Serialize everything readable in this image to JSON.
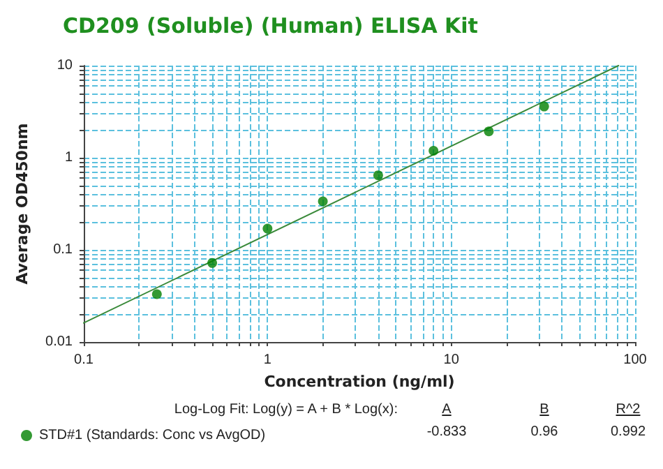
{
  "chart_data": {
    "type": "scatter",
    "title": "CD209 (Soluble) (Human) ELISA Kit",
    "xlabel": "Concentration (ng/ml)",
    "ylabel": "Average OD450nm",
    "log": "xy",
    "xlim": [
      0.1,
      100
    ],
    "ylim": [
      0.01,
      10
    ],
    "grid": true,
    "legend": "bottom left",
    "xticks": [
      0.1,
      {
        "value": 0.2,
        "label": null
      },
      {
        "value": 0.3,
        "label": null
      },
      {
        "value": 0.4,
        "label": null
      },
      {
        "value": 0.5,
        "label": null
      },
      {
        "value": 0.6,
        "label": null
      },
      {
        "value": 0.7,
        "label": null
      },
      {
        "value": 0.8,
        "label": null
      },
      {
        "value": 0.9,
        "label": null
      },
      1,
      {
        "value": 2,
        "label": null
      },
      {
        "value": 3,
        "label": null
      },
      {
        "value": 4,
        "label": null
      },
      {
        "value": 5,
        "label": null
      },
      {
        "value": 6,
        "label": null
      },
      {
        "value": 7,
        "label": null
      },
      {
        "value": 8,
        "label": null
      },
      {
        "value": 9,
        "label": null
      },
      10,
      {
        "value": 20,
        "label": null
      },
      {
        "value": 30,
        "label": null
      },
      {
        "value": 40,
        "label": null
      },
      {
        "value": 50,
        "label": null
      },
      {
        "value": 60,
        "label": null
      },
      {
        "value": 70,
        "label": null
      },
      {
        "value": 80,
        "label": null
      },
      {
        "value": 90,
        "label": null
      },
      100
    ],
    "yticks": [
      0.01,
      {
        "value": 0.02,
        "label": null
      },
      {
        "value": 0.03,
        "label": null
      },
      {
        "value": 0.04,
        "label": null
      },
      {
        "value": 0.05,
        "label": null
      },
      {
        "value": 0.06,
        "label": null
      },
      {
        "value": 0.07,
        "label": null
      },
      {
        "value": 0.08,
        "label": null
      },
      {
        "value": 0.09,
        "label": null
      },
      0.1,
      {
        "value": 0.2,
        "label": null
      },
      {
        "value": 0.3,
        "label": null
      },
      {
        "value": 0.4,
        "label": null
      },
      {
        "value": 0.5,
        "label": null
      },
      {
        "value": 0.6,
        "label": null
      },
      {
        "value": 0.7,
        "label": null
      },
      {
        "value": 0.8,
        "label": null
      },
      {
        "value": 0.9,
        "label": null
      },
      1,
      {
        "value": 2,
        "label": null
      },
      {
        "value": 3,
        "label": null
      },
      {
        "value": 4,
        "label": null
      },
      {
        "value": 5,
        "label": null
      },
      {
        "value": 6,
        "label": null
      },
      {
        "value": 7,
        "label": null
      },
      {
        "value": 8,
        "label": null
      },
      {
        "value": 9,
        "label": null
      },
      10
    ],
    "series": [
      {
        "name": "STD#1 (Standards: Conc vs AvgOD)",
        "marker": "circle",
        "color": "#008000",
        "x": [
          0.25,
          0.5,
          1,
          2,
          4,
          8,
          16,
          32
        ],
        "values": [
          0.033,
          0.072,
          0.17,
          0.336,
          0.645,
          1.19,
          1.93,
          3.6
        ]
      },
      {
        "type": "line",
        "marker": "none",
        "color": "#3a8a3a",
        "x": [
          0.1,
          81.2
        ],
        "values": [
          0.0161,
          10
        ]
      }
    ],
    "annotations": [
      "Log-Log Fit: Log(y) = A + B * Log(x):",
      "A",
      "B",
      "R^2",
      "-0.833",
      "0.96",
      "0.992"
    ]
  }
}
